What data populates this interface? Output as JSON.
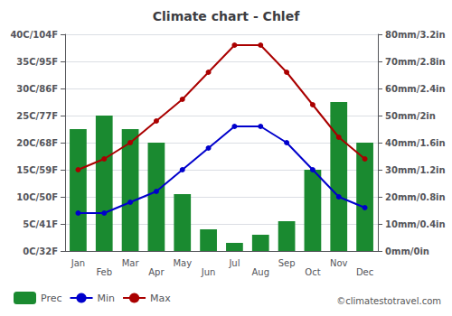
{
  "chart_data": {
    "type": "bar",
    "title": "Climate chart - Chlef",
    "categories": [
      "Jan",
      "Feb",
      "Mar",
      "Apr",
      "May",
      "Jun",
      "Jul",
      "Aug",
      "Sep",
      "Oct",
      "Nov",
      "Dec"
    ],
    "series": [
      {
        "name": "Prec",
        "type": "bar",
        "axis": "y2",
        "color": "#1a8a30",
        "values": [
          45,
          50,
          45,
          40,
          21,
          8,
          3,
          6,
          11,
          30,
          55,
          40
        ]
      },
      {
        "name": "Min",
        "type": "line",
        "color": "#0000cc",
        "marker": "circle",
        "values": [
          7,
          7,
          9,
          11,
          15,
          19,
          23,
          23,
          20,
          15,
          10,
          8
        ]
      },
      {
        "name": "Max",
        "type": "line",
        "color": "#aa0000",
        "marker": "circle",
        "values": [
          15,
          17,
          20,
          24,
          28,
          33,
          38,
          38,
          33,
          27,
          21,
          17
        ]
      }
    ],
    "ylim": [
      0,
      40
    ],
    "yticks": [
      {
        "value": 0,
        "label": "0C/32F"
      },
      {
        "value": 5,
        "label": "5C/41F"
      },
      {
        "value": 10,
        "label": "10C/50F"
      },
      {
        "value": 15,
        "label": "15C/59F"
      },
      {
        "value": 20,
        "label": "20C/68F"
      },
      {
        "value": 25,
        "label": "25C/77F"
      },
      {
        "value": 30,
        "label": "30C/86F"
      },
      {
        "value": 35,
        "label": "35C/95F"
      },
      {
        "value": 40,
        "label": "40C/104F"
      }
    ],
    "y2lim": [
      0,
      80
    ],
    "y2ticks": [
      {
        "value": 0,
        "label": "0mm/0in"
      },
      {
        "value": 10,
        "label": "10mm/0.4in"
      },
      {
        "value": 20,
        "label": "20mm/0.8in"
      },
      {
        "value": 30,
        "label": "30mm/1.2in"
      },
      {
        "value": 40,
        "label": "40mm/1.6in"
      },
      {
        "value": 50,
        "label": "50mm/2in"
      },
      {
        "value": 60,
        "label": "60mm/2.4in"
      },
      {
        "value": 70,
        "label": "70mm/2.8in"
      },
      {
        "value": 80,
        "label": "80mm/3.2in"
      }
    ],
    "grid": true,
    "legend": "lower left",
    "annotations": [
      "©climatestotravel.com"
    ]
  }
}
